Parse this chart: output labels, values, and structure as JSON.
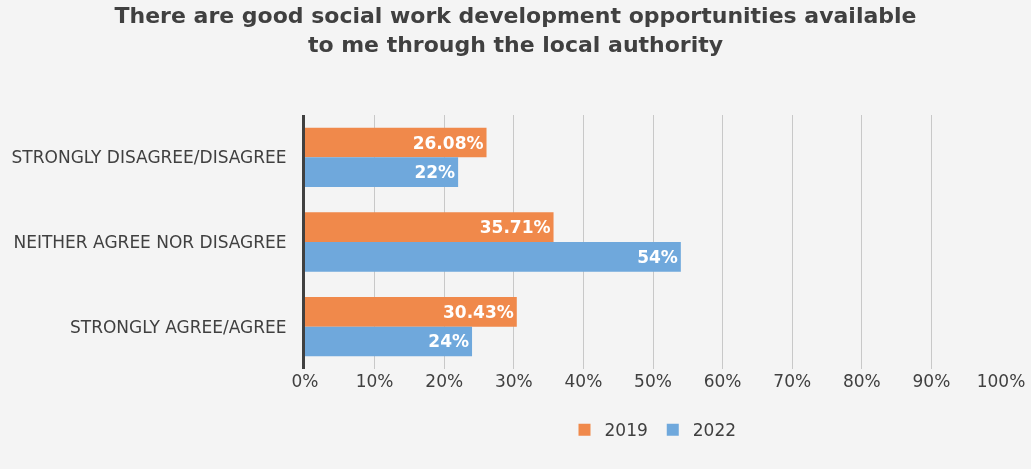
{
  "chart_data": {
    "type": "bar",
    "orientation": "horizontal",
    "title": "There are good social work development opportunities available\nto me through the local authority",
    "categories": [
      "STRONGLY DISAGREE/DISAGREE",
      "NEITHER AGREE NOR DISAGREE",
      "STRONGLY AGREE/AGREE"
    ],
    "series": [
      {
        "name": "2019",
        "color": "#f0894b",
        "values": [
          26.08,
          35.71,
          30.43
        ],
        "value_labels": [
          "26.08%",
          "35.71%",
          "30.43%"
        ]
      },
      {
        "name": "2022",
        "color": "#6fa8dc",
        "values": [
          22,
          54,
          24
        ],
        "value_labels": [
          "22%",
          "54%",
          "24%"
        ]
      }
    ],
    "xlim": [
      0,
      100
    ],
    "xticks": [
      {
        "value": 0,
        "label": "0%"
      },
      {
        "value": 10,
        "label": "10%"
      },
      {
        "value": 20,
        "label": "20%"
      },
      {
        "value": 30,
        "label": "30%"
      },
      {
        "value": 40,
        "label": "40%"
      },
      {
        "value": 50,
        "label": "50%"
      },
      {
        "value": 60,
        "label": "60%"
      },
      {
        "value": 70,
        "label": "70%"
      },
      {
        "value": 80,
        "label": "80%"
      },
      {
        "value": 90,
        "label": "90%"
      },
      {
        "value": 100,
        "label": "100%"
      }
    ],
    "grid": "x",
    "legend": "bottom"
  }
}
